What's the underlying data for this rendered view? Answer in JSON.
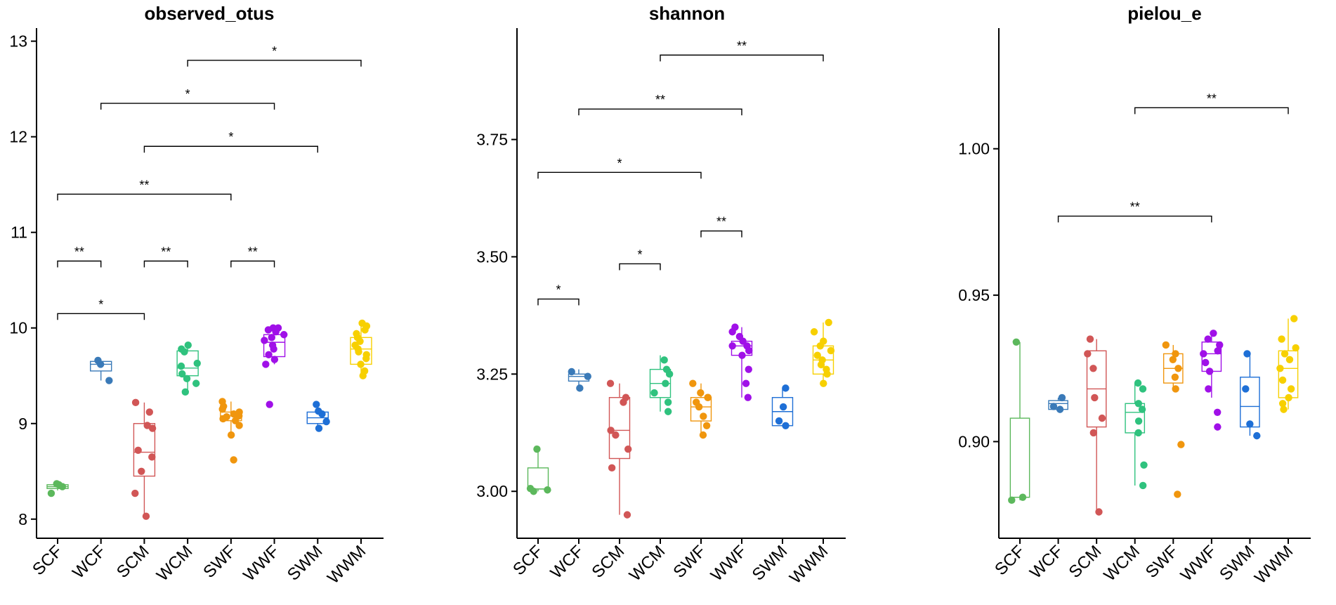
{
  "chart_data": [
    {
      "type": "box",
      "title": "observed_otus",
      "xlabel": "",
      "ylabel": "",
      "ylim": [
        7.8,
        13.1
      ],
      "yticks": [
        8,
        9,
        10,
        11,
        12,
        13
      ],
      "ytick_labels": [
        "8",
        "9",
        "10",
        "11",
        "12",
        "13"
      ],
      "categories": [
        "SCF",
        "WCF",
        "SCM",
        "WCM",
        "SWF",
        "WWF",
        "SWM",
        "WWM"
      ],
      "boxes": [
        {
          "q1": 8.32,
          "median": 8.34,
          "q3": 8.36,
          "wmin": 8.3,
          "wmax": 8.38,
          "points": [
            8.27,
            8.34,
            8.36,
            8.37
          ]
        },
        {
          "q1": 9.55,
          "median": 9.62,
          "q3": 9.65,
          "wmin": 9.45,
          "wmax": 9.67,
          "points": [
            9.45,
            9.62,
            9.66
          ]
        },
        {
          "q1": 8.45,
          "median": 8.7,
          "q3": 9.0,
          "wmin": 8.03,
          "wmax": 9.22,
          "points": [
            8.03,
            8.27,
            8.5,
            8.65,
            8.72,
            8.95,
            8.98,
            9.12,
            9.22
          ]
        },
        {
          "q1": 9.5,
          "median": 9.58,
          "q3": 9.76,
          "wmin": 9.33,
          "wmax": 9.82,
          "points": [
            9.33,
            9.42,
            9.47,
            9.52,
            9.6,
            9.63,
            9.75,
            9.78,
            9.82
          ]
        },
        {
          "q1": 9.03,
          "median": 9.08,
          "q3": 9.12,
          "wmin": 8.88,
          "wmax": 9.23,
          "points": [
            8.62,
            8.88,
            8.98,
            9.03,
            9.05,
            9.07,
            9.08,
            9.1,
            9.12,
            9.15,
            9.18,
            9.23
          ]
        },
        {
          "q1": 9.7,
          "median": 9.85,
          "q3": 9.93,
          "wmin": 9.62,
          "wmax": 10.0,
          "points": [
            9.2,
            9.62,
            9.67,
            9.72,
            9.78,
            9.82,
            9.87,
            9.9,
            9.93,
            9.96,
            9.98,
            10.0,
            10.0
          ]
        },
        {
          "q1": 9.0,
          "median": 9.06,
          "q3": 9.12,
          "wmin": 8.95,
          "wmax": 9.2,
          "points": [
            8.95,
            9.02,
            9.1,
            9.13,
            9.2
          ]
        },
        {
          "q1": 9.62,
          "median": 9.78,
          "q3": 9.9,
          "wmin": 9.5,
          "wmax": 10.05,
          "points": [
            9.5,
            9.55,
            9.62,
            9.68,
            9.72,
            9.75,
            9.78,
            9.82,
            9.86,
            9.9,
            9.94,
            9.98,
            10.02,
            10.05
          ]
        }
      ],
      "significance": [
        {
          "from": "SCF",
          "to": "SCM",
          "y": 10.15,
          "label": "*"
        },
        {
          "from": "SCF",
          "to": "WCF",
          "y": 10.7,
          "label": "**"
        },
        {
          "from": "SCM",
          "to": "WCM",
          "y": 10.7,
          "label": "**"
        },
        {
          "from": "SWF",
          "to": "WWF",
          "y": 10.7,
          "label": "**"
        },
        {
          "from": "SCF",
          "to": "SWF",
          "y": 11.4,
          "label": "**"
        },
        {
          "from": "SCM",
          "to": "SWM",
          "y": 11.9,
          "label": "*"
        },
        {
          "from": "WCF",
          "to": "WWF",
          "y": 12.35,
          "label": "*"
        },
        {
          "from": "WCM",
          "to": "WWM",
          "y": 12.8,
          "label": "*"
        }
      ]
    },
    {
      "type": "box",
      "title": "shannon",
      "xlabel": "",
      "ylabel": "",
      "ylim": [
        2.9,
        3.98
      ],
      "yticks": [
        3.0,
        3.25,
        3.5,
        3.75
      ],
      "ytick_labels": [
        "3.00",
        "3.25",
        "3.50",
        "3.75"
      ],
      "categories": [
        "SCF",
        "WCF",
        "SCM",
        "WCM",
        "SWF",
        "WWF",
        "SWM",
        "WWM"
      ],
      "boxes": [
        {
          "q1": 3.005,
          "median": 3.005,
          "q3": 3.05,
          "wmin": 3.0,
          "wmax": 3.09,
          "points": [
            3.0,
            3.003,
            3.006,
            3.09
          ]
        },
        {
          "q1": 3.235,
          "median": 3.245,
          "q3": 3.25,
          "wmin": 3.22,
          "wmax": 3.26,
          "points": [
            3.22,
            3.245,
            3.255
          ]
        },
        {
          "q1": 3.07,
          "median": 3.13,
          "q3": 3.2,
          "wmin": 2.95,
          "wmax": 3.23,
          "points": [
            2.95,
            3.05,
            3.09,
            3.12,
            3.13,
            3.19,
            3.2,
            3.23
          ]
        },
        {
          "q1": 3.2,
          "median": 3.23,
          "q3": 3.26,
          "wmin": 3.17,
          "wmax": 3.29,
          "points": [
            3.17,
            3.19,
            3.21,
            3.23,
            3.25,
            3.26,
            3.28
          ]
        },
        {
          "q1": 3.15,
          "median": 3.18,
          "q3": 3.2,
          "wmin": 3.12,
          "wmax": 3.23,
          "points": [
            3.12,
            3.14,
            3.16,
            3.18,
            3.19,
            3.2,
            3.2,
            3.21,
            3.23
          ]
        },
        {
          "q1": 3.29,
          "median": 3.31,
          "q3": 3.32,
          "wmin": 3.2,
          "wmax": 3.35,
          "points": [
            3.2,
            3.23,
            3.26,
            3.29,
            3.3,
            3.31,
            3.31,
            3.32,
            3.33,
            3.34,
            3.35
          ]
        },
        {
          "q1": 3.14,
          "median": 3.17,
          "q3": 3.2,
          "wmin": 3.14,
          "wmax": 3.22,
          "points": [
            3.14,
            3.15,
            3.18,
            3.22
          ]
        },
        {
          "q1": 3.25,
          "median": 3.28,
          "q3": 3.31,
          "wmin": 3.23,
          "wmax": 3.36,
          "points": [
            3.23,
            3.25,
            3.26,
            3.27,
            3.28,
            3.29,
            3.3,
            3.31,
            3.32,
            3.34,
            3.36
          ]
        }
      ],
      "significance": [
        {
          "from": "SCF",
          "to": "WCF",
          "y": 3.41,
          "label": "*"
        },
        {
          "from": "SCM",
          "to": "WCM",
          "y": 3.485,
          "label": "*"
        },
        {
          "from": "SWF",
          "to": "WWF",
          "y": 3.555,
          "label": "**"
        },
        {
          "from": "SCF",
          "to": "SWF",
          "y": 3.68,
          "label": "*"
        },
        {
          "from": "WCF",
          "to": "WWF",
          "y": 3.815,
          "label": "**"
        },
        {
          "from": "WCM",
          "to": "WWM",
          "y": 3.93,
          "label": "**"
        }
      ]
    },
    {
      "type": "box",
      "title": "pielou_e",
      "xlabel": "",
      "ylabel": "",
      "ylim": [
        0.867,
        1.04
      ],
      "yticks": [
        0.9,
        0.95,
        1.0
      ],
      "ytick_labels": [
        "0.90",
        "0.95",
        "1.00"
      ],
      "categories": [
        "SCF",
        "WCF",
        "SCM",
        "WCM",
        "SWF",
        "WWF",
        "SWM",
        "WWM"
      ],
      "boxes": [
        {
          "q1": 0.881,
          "median": 0.881,
          "q3": 0.908,
          "wmin": 0.88,
          "wmax": 0.934,
          "points": [
            0.88,
            0.881,
            0.934
          ]
        },
        {
          "q1": 0.911,
          "median": 0.913,
          "q3": 0.914,
          "wmin": 0.911,
          "wmax": 0.915,
          "points": [
            0.911,
            0.912,
            0.915
          ]
        },
        {
          "q1": 0.905,
          "median": 0.918,
          "q3": 0.931,
          "wmin": 0.876,
          "wmax": 0.935,
          "points": [
            0.876,
            0.903,
            0.908,
            0.915,
            0.925,
            0.93,
            0.935
          ]
        },
        {
          "q1": 0.903,
          "median": 0.91,
          "q3": 0.913,
          "wmin": 0.885,
          "wmax": 0.92,
          "points": [
            0.885,
            0.892,
            0.903,
            0.907,
            0.911,
            0.913,
            0.918,
            0.92
          ]
        },
        {
          "q1": 0.92,
          "median": 0.925,
          "q3": 0.93,
          "wmin": 0.918,
          "wmax": 0.933,
          "points": [
            0.882,
            0.899,
            0.918,
            0.922,
            0.925,
            0.928,
            0.93,
            0.933
          ]
        },
        {
          "q1": 0.924,
          "median": 0.93,
          "q3": 0.934,
          "wmin": 0.915,
          "wmax": 0.937,
          "points": [
            0.905,
            0.91,
            0.918,
            0.924,
            0.927,
            0.93,
            0.931,
            0.933,
            0.935,
            0.937
          ]
        },
        {
          "q1": 0.905,
          "median": 0.912,
          "q3": 0.922,
          "wmin": 0.902,
          "wmax": 0.93,
          "points": [
            0.902,
            0.906,
            0.918,
            0.93
          ]
        },
        {
          "q1": 0.915,
          "median": 0.925,
          "q3": 0.931,
          "wmin": 0.911,
          "wmax": 0.942,
          "points": [
            0.911,
            0.913,
            0.915,
            0.918,
            0.921,
            0.925,
            0.928,
            0.93,
            0.932,
            0.935,
            0.942
          ]
        }
      ],
      "significance": [
        {
          "from": "WCF",
          "to": "WWF",
          "y": 0.977,
          "label": "**"
        },
        {
          "from": "WCM",
          "to": "WWM",
          "y": 1.014,
          "label": "**"
        }
      ]
    }
  ],
  "colors": {
    "SCF": "#5cb85c",
    "WCF": "#3a7ab8",
    "SCM": "#d15656",
    "WCM": "#2fc27e",
    "SWF": "#f0960e",
    "WWF": "#a010e8",
    "SWM": "#1e6fd6",
    "WWM": "#f7d000"
  }
}
